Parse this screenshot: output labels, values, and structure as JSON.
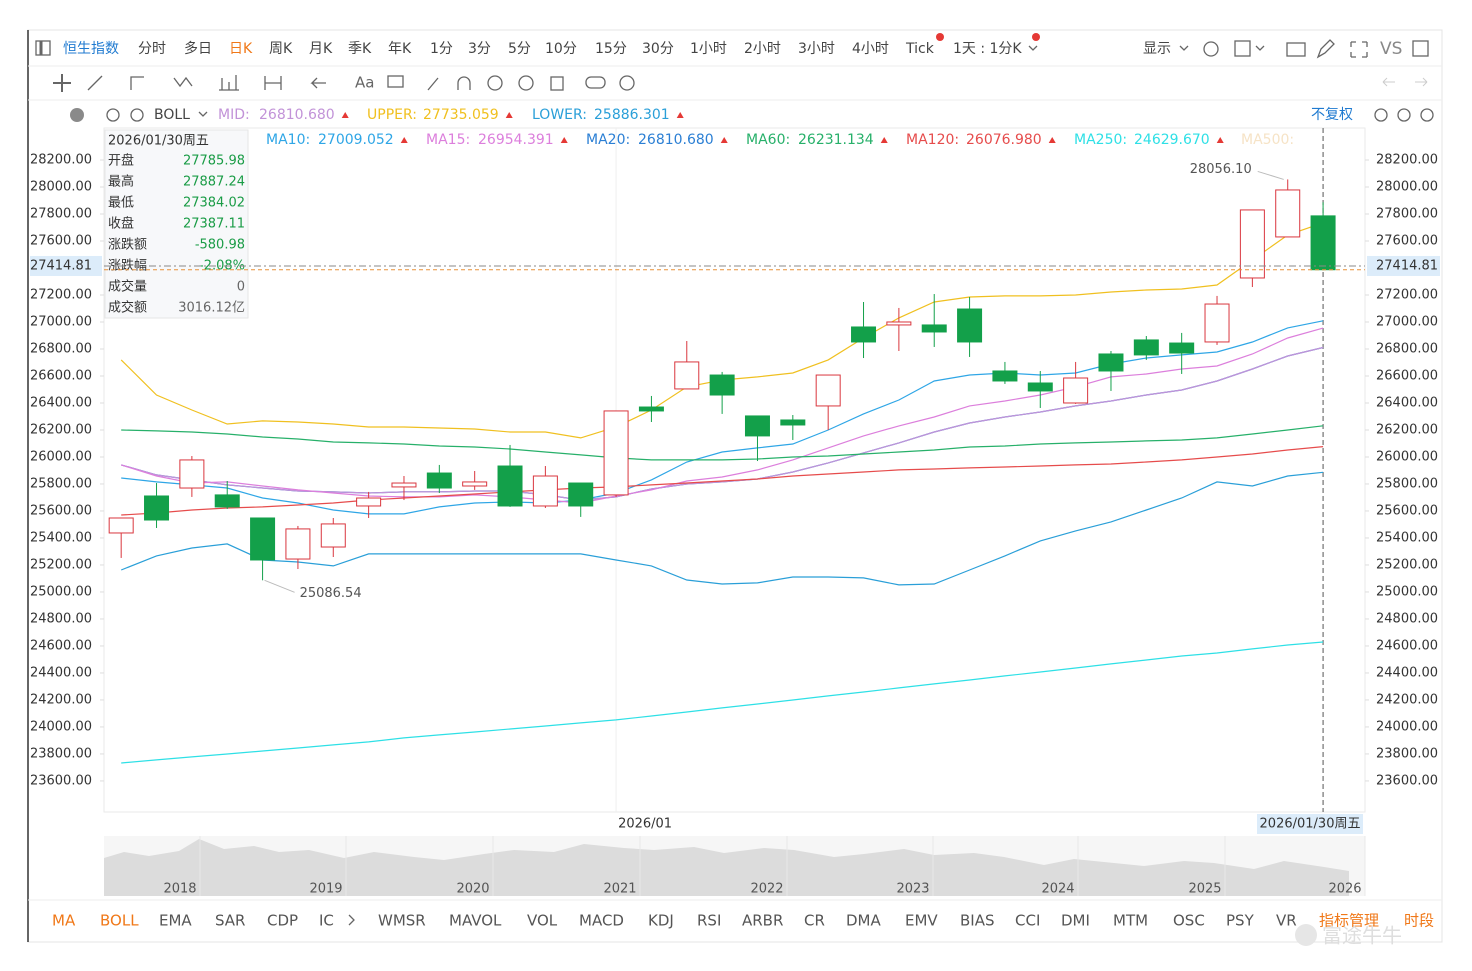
{
  "toolbar": {
    "symbol": "恒生指数",
    "periods": [
      "分时",
      "多日",
      "日K",
      "周K",
      "月K",
      "季K",
      "年K",
      "1分",
      "3分",
      "5分",
      "10分",
      "15分",
      "30分",
      "1小时",
      "2小时",
      "3小时",
      "4小时",
      "Tick"
    ],
    "active_index": 2,
    "custom": "1天 : 1分K",
    "display": "显示",
    "compare": "VS"
  },
  "drawing_toolbar": {
    "text_tool": "Aa"
  },
  "indicator_bar": {
    "name": "BOLL",
    "adjust": "不复权"
  },
  "ma500_label": "MA500:",
  "info_panel": {
    "date": "2026/01/30周五",
    "rows": [
      {
        "label": "开盘",
        "value": "27785.98",
        "color": "#1a9c46"
      },
      {
        "label": "最高",
        "value": "27887.24",
        "color": "#1a9c46"
      },
      {
        "label": "最低",
        "value": "27384.02",
        "color": "#1a9c46"
      },
      {
        "label": "收盘",
        "value": "27387.11",
        "color": "#1a9c46"
      },
      {
        "label": "涨跌额",
        "value": "-580.98",
        "color": "#1a9c46"
      },
      {
        "label": "涨跌幅",
        "value": "-2.08%",
        "color": "#1a9c46"
      },
      {
        "label": "成交量",
        "value": "0",
        "color": "#666666"
      },
      {
        "label": "成交额",
        "value": "3016.12亿",
        "color": "#666666"
      }
    ]
  },
  "chart_data": {
    "type": "candlestick",
    "categories": [
      null,
      null,
      null,
      null,
      null,
      null,
      null,
      null,
      null,
      null,
      null,
      null,
      null,
      null,
      "2026/01",
      null,
      null,
      null,
      null,
      null,
      null,
      null,
      null,
      null,
      null,
      null,
      null,
      null,
      null,
      null,
      null,
      null,
      null,
      null,
      "2026/01/30周五"
    ],
    "open": [
      25437,
      25711,
      25770,
      25719,
      25548,
      25244,
      25333,
      25637,
      25778,
      25881,
      25785,
      25933,
      25637,
      25807,
      25719,
      26370,
      26504,
      26607,
      26304,
      26274,
      26378,
      26963,
      26978,
      26978,
      27096,
      26637,
      26548,
      26400,
      26763,
      26867,
      26844,
      26852,
      27326,
      27630,
      27785.98
    ],
    "high": [
      25548,
      25807,
      26007,
      25822,
      25548,
      25489,
      25548,
      25741,
      25859,
      25941,
      25896,
      26089,
      25933,
      25807,
      26341,
      26452,
      26859,
      26630,
      26304,
      26311,
      26607,
      27148,
      27104,
      27207,
      27185,
      26704,
      26637,
      26704,
      26785,
      26896,
      26919,
      27193,
      27830,
      28056.1,
      27887.24
    ],
    "low": [
      25252,
      25474,
      25704,
      25615,
      25086.54,
      25170,
      25259,
      25548,
      25681,
      25733,
      25756,
      25630,
      25622,
      25556,
      25704,
      26259,
      26504,
      26319,
      25970,
      26126,
      26200,
      26733,
      26785,
      26815,
      26741,
      26541,
      26363,
      26393,
      26489,
      26719,
      26615,
      26830,
      27259,
      27630,
      27384.02
    ],
    "close": [
      25548,
      25533,
      25978,
      25630,
      25237,
      25467,
      25504,
      25696,
      25807,
      25770,
      25815,
      25637,
      25859,
      25637,
      26341,
      26341,
      26704,
      26459,
      26156,
      26237,
      26607,
      26852,
      27000,
      26926,
      26852,
      26563,
      26489,
      26585,
      26637,
      26756,
      26770,
      27133,
      27830,
      27978,
      27387.11
    ],
    "up_color": "#d9363e",
    "down_color": "#13a04a",
    "max_label": "28056.10",
    "min_label": "25086.54",
    "last_price": 27414.81,
    "ylim": [
      23370,
      28437
    ],
    "yticks": [
      {
        "value": 23600,
        "label": "23600.00"
      },
      {
        "value": 23800,
        "label": "23800.00"
      },
      {
        "value": 24000,
        "label": "24000.00"
      },
      {
        "value": 24200,
        "label": "24200.00"
      },
      {
        "value": 24400,
        "label": "24400.00"
      },
      {
        "value": 24600,
        "label": "24600.00"
      },
      {
        "value": 24800,
        "label": "24800.00"
      },
      {
        "value": 25000,
        "label": "25000.00"
      },
      {
        "value": 25200,
        "label": "25200.00"
      },
      {
        "value": 25400,
        "label": "25400.00"
      },
      {
        "value": 25600,
        "label": "25600.00"
      },
      {
        "value": 25800,
        "label": "25800.00"
      },
      {
        "value": 26000,
        "label": "26000.00"
      },
      {
        "value": 26200,
        "label": "26200.00"
      },
      {
        "value": 26400,
        "label": "26400.00"
      },
      {
        "value": 26600,
        "label": "26600.00"
      },
      {
        "value": 26800,
        "label": "26800.00"
      },
      {
        "value": 27000,
        "label": "27000.00"
      },
      {
        "value": 27200,
        "label": "27200.00"
      },
      {
        "value": 27600,
        "label": "27600.00"
      },
      {
        "value": 27800,
        "label": "27800.00"
      },
      {
        "value": 28000,
        "label": "28000.00"
      },
      {
        "value": 28200,
        "label": "28200.00"
      }
    ],
    "grid": false,
    "series": [
      {
        "name": "MA20:",
        "group": "ma",
        "color": "#2b7fd4",
        "legend_value": "26810.680",
        "values": [
          25941,
          25867,
          25830,
          25793,
          25770,
          25748,
          25741,
          25733,
          25741,
          25741,
          25748,
          25748,
          25719,
          25681,
          25704,
          25763,
          25800,
          25815,
          25837,
          25889,
          25956,
          26030,
          26104,
          26185,
          26252,
          26296,
          26333,
          26378,
          26415,
          26459,
          26496,
          26563,
          26652,
          26748,
          26810.68
        ]
      },
      {
        "name": "MID:",
        "group": "boll",
        "color": "#c293d8",
        "legend_value": "26810.680",
        "values": [
          25941,
          25867,
          25830,
          25793,
          25770,
          25748,
          25741,
          25733,
          25741,
          25741,
          25748,
          25748,
          25719,
          25681,
          25704,
          25763,
          25800,
          25815,
          25837,
          25889,
          25956,
          26030,
          26104,
          26185,
          26252,
          26296,
          26333,
          26378,
          26415,
          26459,
          26496,
          26563,
          26652,
          26748,
          26810.68
        ]
      },
      {
        "name": "UPPER:",
        "group": "boll",
        "color": "#f0c020",
        "legend_value": "27735.059",
        "values": [
          26719,
          26459,
          26348,
          26244,
          26267,
          26259,
          26244,
          26222,
          26222,
          26215,
          26207,
          26185,
          26185,
          26141,
          26222,
          26348,
          26519,
          26570,
          26593,
          26622,
          26719,
          26881,
          27030,
          27148,
          27185,
          27193,
          27193,
          27200,
          27222,
          27237,
          27244,
          27274,
          27459,
          27644,
          27735.059
        ]
      },
      {
        "name": "LOWER:",
        "group": "boll",
        "color": "#2a9fd8",
        "legend_value": "25886.301",
        "values": [
          25163,
          25267,
          25326,
          25356,
          25237,
          25222,
          25193,
          25282,
          25282,
          25282,
          25282,
          25282,
          25282,
          25282,
          25237,
          25193,
          25089,
          25059,
          25067,
          25111,
          25111,
          25104,
          25052,
          25059,
          25163,
          25267,
          25378,
          25452,
          25519,
          25607,
          25696,
          25815,
          25785,
          25859,
          25886.301
        ]
      },
      {
        "name": "MA10:",
        "group": "ma",
        "color": "#2fa6e6",
        "legend_value": "27009.052",
        "values": [
          25844,
          25815,
          25793,
          25770,
          25696,
          25659,
          25607,
          25578,
          25578,
          25630,
          25659,
          25667,
          25659,
          25681,
          25733,
          25830,
          25963,
          26037,
          26067,
          26096,
          26200,
          26319,
          26422,
          26563,
          26607,
          26622,
          26607,
          26622,
          26689,
          26733,
          26756,
          26778,
          26852,
          26956,
          27009.052
        ]
      },
      {
        "name": "MA15:",
        "group": "ma",
        "color": "#dc7fdc",
        "legend_value": "26954.391",
        "values": [
          25941,
          25859,
          25807,
          25815,
          25785,
          25756,
          25733,
          25711,
          25704,
          25704,
          25719,
          25704,
          25681,
          25659,
          25711,
          25756,
          25822,
          25852,
          25904,
          25978,
          26067,
          26156,
          26230,
          26296,
          26378,
          26415,
          26459,
          26519,
          26593,
          26615,
          26652,
          26674,
          26763,
          26881,
          26954.391
        ]
      },
      {
        "name": "MA60:",
        "group": "ma",
        "color": "#27b06a",
        "legend_value": "26231.134",
        "values": [
          26200,
          26193,
          26185,
          26170,
          26148,
          26133,
          26111,
          26104,
          26096,
          26081,
          26074,
          26059,
          26037,
          26015,
          25993,
          25978,
          25978,
          25978,
          25985,
          26000,
          26007,
          26022,
          26037,
          26052,
          26074,
          26081,
          26096,
          26104,
          26111,
          26119,
          26126,
          26141,
          26170,
          26200,
          26231.134
        ]
      },
      {
        "name": "MA120:",
        "group": "ma",
        "color": "#e64c4c",
        "legend_value": "26076.980",
        "values": [
          25570,
          25585,
          25607,
          25622,
          25630,
          25644,
          25659,
          25681,
          25696,
          25711,
          25726,
          25741,
          25756,
          25770,
          25778,
          25793,
          25807,
          25822,
          25837,
          25859,
          25874,
          25889,
          25904,
          25911,
          25919,
          25926,
          25933,
          25941,
          25948,
          25963,
          25978,
          26000,
          26022,
          26052,
          26076.98
        ]
      },
      {
        "name": "MA250:",
        "group": "ma",
        "color": "#2ee0e6",
        "legend_value": "24629.670",
        "values": [
          23733,
          23756,
          23778,
          23800,
          23822,
          23844,
          23867,
          23889,
          23919,
          23941,
          23963,
          23985,
          24007,
          24030,
          24052,
          24081,
          24111,
          24141,
          24170,
          24200,
          24230,
          24259,
          24289,
          24319,
          24348,
          24378,
          24407,
          24437,
          24467,
          24496,
          24526,
          24548,
          24578,
          24607,
          24629.67
        ]
      }
    ]
  },
  "navigator": {
    "years": [
      "2018",
      "2019",
      "2020",
      "2021",
      "2022",
      "2023",
      "2024",
      "2025",
      "2026"
    ]
  },
  "bottom_tabs": [
    {
      "label": "MA",
      "active": true
    },
    {
      "label": "BOLL",
      "active": true
    },
    {
      "label": "EMA",
      "active": false
    },
    {
      "label": "SAR",
      "active": false
    },
    {
      "label": "CDP",
      "active": false
    },
    {
      "label": "IC",
      "active": false
    },
    {
      "label": "WMSR",
      "active": false
    },
    {
      "label": "MAVOL",
      "active": false
    },
    {
      "label": "VOL",
      "active": false
    },
    {
      "label": "MACD",
      "active": false
    },
    {
      "label": "KDJ",
      "active": false
    },
    {
      "label": "RSI",
      "active": false
    },
    {
      "label": "ARBR",
      "active": false
    },
    {
      "label": "CR",
      "active": false
    },
    {
      "label": "DMA",
      "active": false
    },
    {
      "label": "EMV",
      "active": false
    },
    {
      "label": "BIAS",
      "active": false
    },
    {
      "label": "CCI",
      "active": false
    },
    {
      "label": "DMI",
      "active": false
    },
    {
      "label": "MTM",
      "active": false
    },
    {
      "label": "OSC",
      "active": false
    },
    {
      "label": "PSY",
      "active": false
    },
    {
      "label": "VR",
      "active": false
    },
    {
      "label": "指标管理",
      "active": true
    },
    {
      "label": "时段",
      "active": true
    }
  ],
  "watermark": "富途牛牛"
}
